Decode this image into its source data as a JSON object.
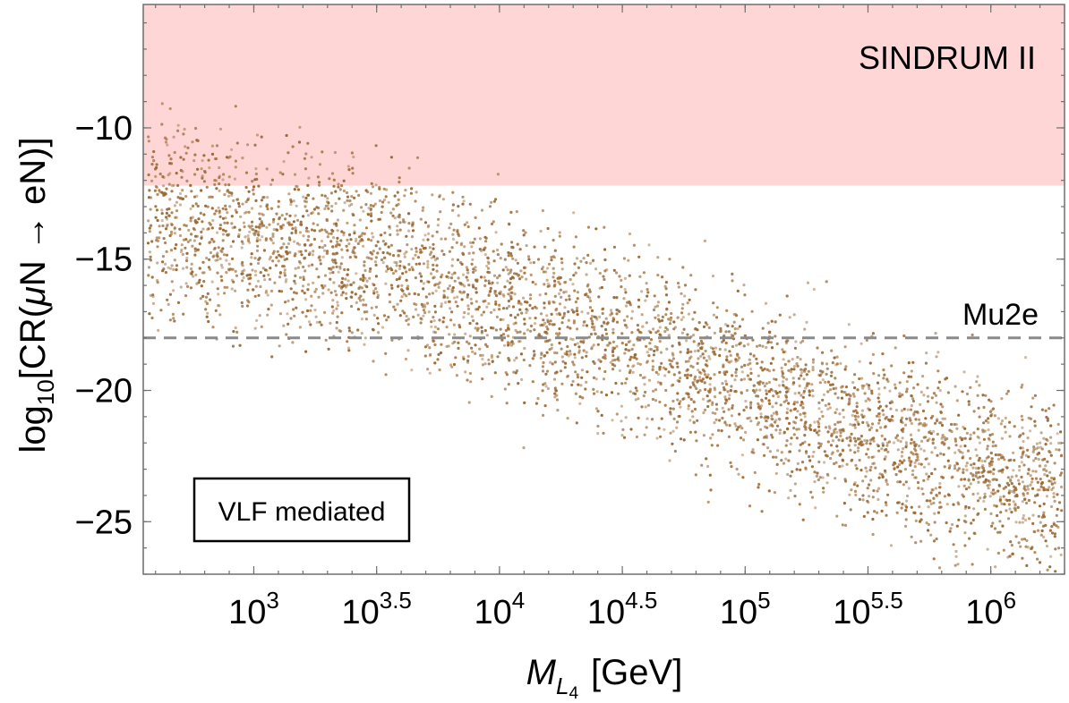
{
  "chart_data": {
    "type": "scatter",
    "title": "",
    "xlabel": {
      "main": "M",
      "sub": "L",
      "subsub": "4",
      "unit": "[GeV]"
    },
    "ylabel": {
      "prefix": "log",
      "sub": "10",
      "body": "[CR(",
      "mu": "μ",
      "rest": "N → eN)]"
    },
    "x_scale": "log10",
    "xlim_log10": [
      2.55,
      6.3
    ],
    "ylim": [
      -27,
      -5.3
    ],
    "x_ticks": [
      {
        "log10": 3.0,
        "base": "10",
        "exp": "3"
      },
      {
        "log10": 3.5,
        "base": "10",
        "exp": "3.5"
      },
      {
        "log10": 4.0,
        "base": "10",
        "exp": "4"
      },
      {
        "log10": 4.5,
        "base": "10",
        "exp": "4.5"
      },
      {
        "log10": 5.0,
        "base": "10",
        "exp": "5"
      },
      {
        "log10": 5.5,
        "base": "10",
        "exp": "5.5"
      },
      {
        "log10": 6.0,
        "base": "10",
        "exp": "6"
      }
    ],
    "y_ticks": [
      {
        "value": -10,
        "label": "−10"
      },
      {
        "value": -15,
        "label": "−15"
      },
      {
        "value": -20,
        "label": "−20"
      },
      {
        "value": -25,
        "label": "−25"
      }
    ],
    "excluded_region": {
      "name": "SINDRUM II",
      "y_from": -12.2,
      "y_to": -5.3,
      "color": "#ffd6d6"
    },
    "reference_line": {
      "name": "Mu2e",
      "y": -18.0,
      "style": "dashed",
      "color": "#8a8a8a"
    },
    "inset_label": "VLF mediated",
    "series": [
      {
        "name": "VLF mediated scan",
        "color": "#9b6a35",
        "n_points": 4200,
        "band_trend": [
          {
            "log10_M": 2.6,
            "y_center": -13.5,
            "y_spread": 3.2
          },
          {
            "log10_M": 3.5,
            "y_center": -15.0,
            "y_spread": 3.2
          },
          {
            "log10_M": 4.5,
            "y_center": -18.0,
            "y_spread": 3.0
          },
          {
            "log10_M": 5.5,
            "y_center": -21.5,
            "y_spread": 3.0
          },
          {
            "log10_M": 6.3,
            "y_center": -24.0,
            "y_spread": 3.0
          }
        ]
      }
    ]
  }
}
